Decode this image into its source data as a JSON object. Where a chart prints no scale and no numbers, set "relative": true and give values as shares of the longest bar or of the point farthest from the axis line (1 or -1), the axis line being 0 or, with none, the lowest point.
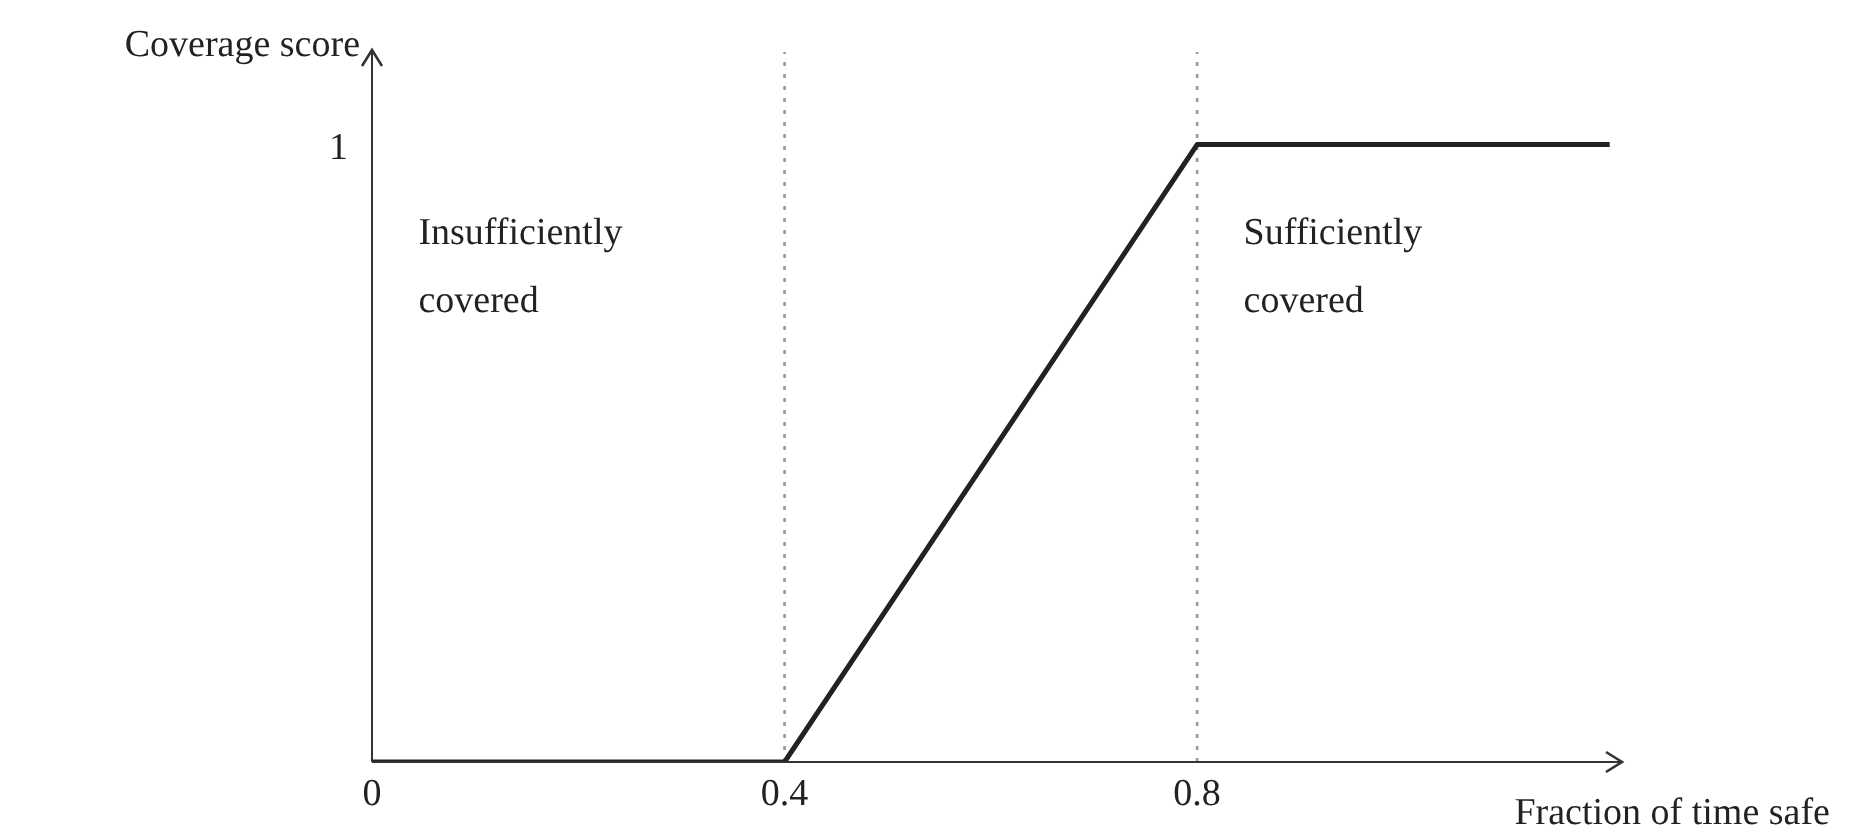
{
  "chart_data": {
    "type": "line",
    "xlabel": "Fraction of time safe",
    "ylabel": "Coverage score",
    "x": [
      0,
      0.4,
      0.8,
      1.2
    ],
    "series": [
      {
        "color": "#222222",
        "values": [
          0,
          0,
          1,
          1
        ]
      }
    ],
    "xlim": [
      0,
      1.21
    ],
    "xticks": [
      0,
      0.4,
      0.8
    ],
    "relative": true,
    "grid": false,
    "legend": false,
    "marker": "none",
    "line_style": "solid",
    "ref_lines": [
      {
        "axis": "x",
        "value": 0.4,
        "color": "#999999",
        "line_style": "dotted"
      },
      {
        "axis": "x",
        "value": 0.8,
        "color": "#999999",
        "line_style": "dotted"
      }
    ],
    "annotations": [
      "Insufficiently covered",
      "Sufficiently covered",
      "1"
    ]
  }
}
